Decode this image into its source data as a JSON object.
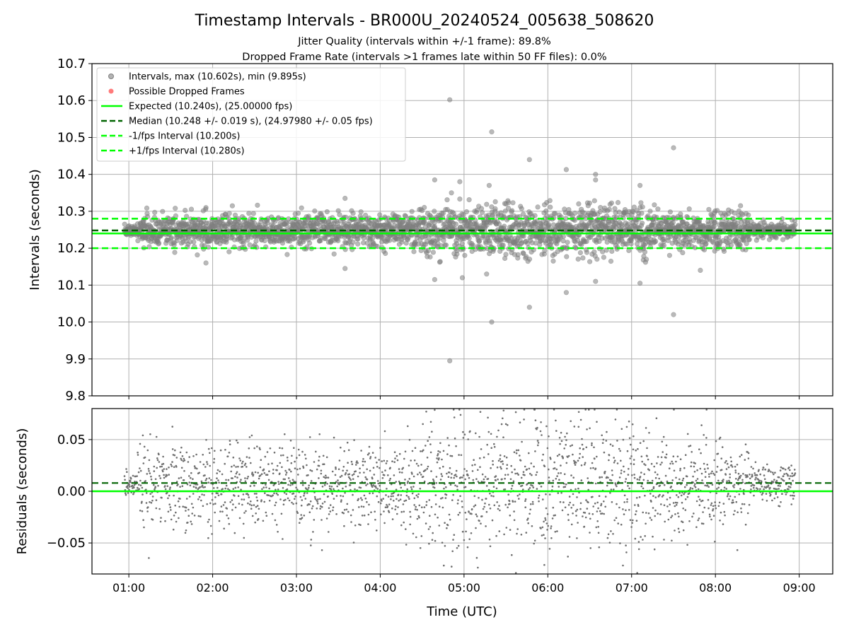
{
  "chart_data": {
    "type": "scatter",
    "title": "Timestamp Intervals - BR000U_20240524_005638_508620",
    "subtitle_1": "Jitter Quality (intervals within +/-1 frame): 89.8%",
    "subtitle_2": "Dropped Frame Rate (intervals >1 frames late within 50 FF files): 0.0%",
    "xlabel": "Time (UTC)",
    "x_ticks": [
      "01:00",
      "02:00",
      "03:00",
      "04:00",
      "05:00",
      "06:00",
      "07:00",
      "08:00",
      "09:00"
    ],
    "xlim_hours": [
      0.56,
      9.4
    ],
    "data_start_hours": 0.95,
    "data_end_hours": 8.95,
    "grid": true,
    "colors": {
      "points": "#808080",
      "dropped": "#ff6b6b",
      "expected": "#00ff00",
      "median": "#006400",
      "fps_interval": "#00ff00",
      "grid": "#b0b0b0"
    },
    "top_panel": {
      "ylabel": "Intervals (seconds)",
      "ylim": [
        9.8,
        10.7
      ],
      "y_ticks": [
        "9.8",
        "9.9",
        "10.0",
        "10.1",
        "10.2",
        "10.3",
        "10.4",
        "10.5",
        "10.6",
        "10.7"
      ],
      "y_tick_values": [
        9.8,
        9.9,
        10.0,
        10.1,
        10.2,
        10.3,
        10.4,
        10.5,
        10.6,
        10.7
      ],
      "expected": 10.24,
      "median": 10.248,
      "minus_fps": 10.2,
      "plus_fps": 10.28,
      "legend_location": "upper-left",
      "legend": [
        {
          "label": "Intervals, max (10.602s), min (9.895s)",
          "kind": "marker-gray"
        },
        {
          "label": "Possible Dropped Frames",
          "kind": "marker-red"
        },
        {
          "label": "Expected (10.240s), (25.00000 fps)",
          "kind": "solid-green"
        },
        {
          "label": "Median (10.248 +/- 0.019 s), (24.97980 +/- 0.05 fps)",
          "kind": "dashed-darkgreen"
        },
        {
          "label": "-1/fps Interval (10.200s)",
          "kind": "dashed-green"
        },
        {
          "label": "+1/fps Interval (10.280s)",
          "kind": "dashed-green"
        }
      ],
      "outliers": [
        {
          "x": 4.83,
          "y": 10.602
        },
        {
          "x": 4.83,
          "y": 9.895
        },
        {
          "x": 5.33,
          "y": 10.515
        },
        {
          "x": 7.5,
          "y": 10.472
        },
        {
          "x": 5.78,
          "y": 10.44
        },
        {
          "x": 6.22,
          "y": 10.413
        },
        {
          "x": 6.57,
          "y": 10.4
        },
        {
          "x": 7.5,
          "y": 10.02
        },
        {
          "x": 5.33,
          "y": 10.0
        },
        {
          "x": 5.78,
          "y": 10.04
        },
        {
          "x": 6.22,
          "y": 10.08
        },
        {
          "x": 4.65,
          "y": 10.385
        },
        {
          "x": 4.95,
          "y": 10.38
        },
        {
          "x": 5.3,
          "y": 10.37
        },
        {
          "x": 3.58,
          "y": 10.335
        },
        {
          "x": 3.58,
          "y": 10.145
        },
        {
          "x": 6.57,
          "y": 10.385
        },
        {
          "x": 6.57,
          "y": 10.11
        },
        {
          "x": 7.1,
          "y": 10.37
        },
        {
          "x": 7.1,
          "y": 10.105
        },
        {
          "x": 4.65,
          "y": 10.115
        },
        {
          "x": 4.98,
          "y": 10.12
        },
        {
          "x": 5.27,
          "y": 10.13
        },
        {
          "x": 1.92,
          "y": 10.16
        },
        {
          "x": 1.92,
          "y": 10.31
        },
        {
          "x": 7.82,
          "y": 10.14
        },
        {
          "x": 8.3,
          "y": 10.315
        },
        {
          "x": 4.85,
          "y": 10.35
        },
        {
          "x": 5.5,
          "y": 10.32
        }
      ]
    },
    "bottom_panel": {
      "ylabel": "Residuals (seconds)",
      "ylim": [
        -0.08,
        0.08
      ],
      "y_ticks": [
        "−0.05",
        "0.00",
        "0.05"
      ],
      "y_tick_values": [
        -0.05,
        0.0,
        0.05
      ],
      "zero_line": 0.0,
      "median_offset": 0.008
    }
  }
}
